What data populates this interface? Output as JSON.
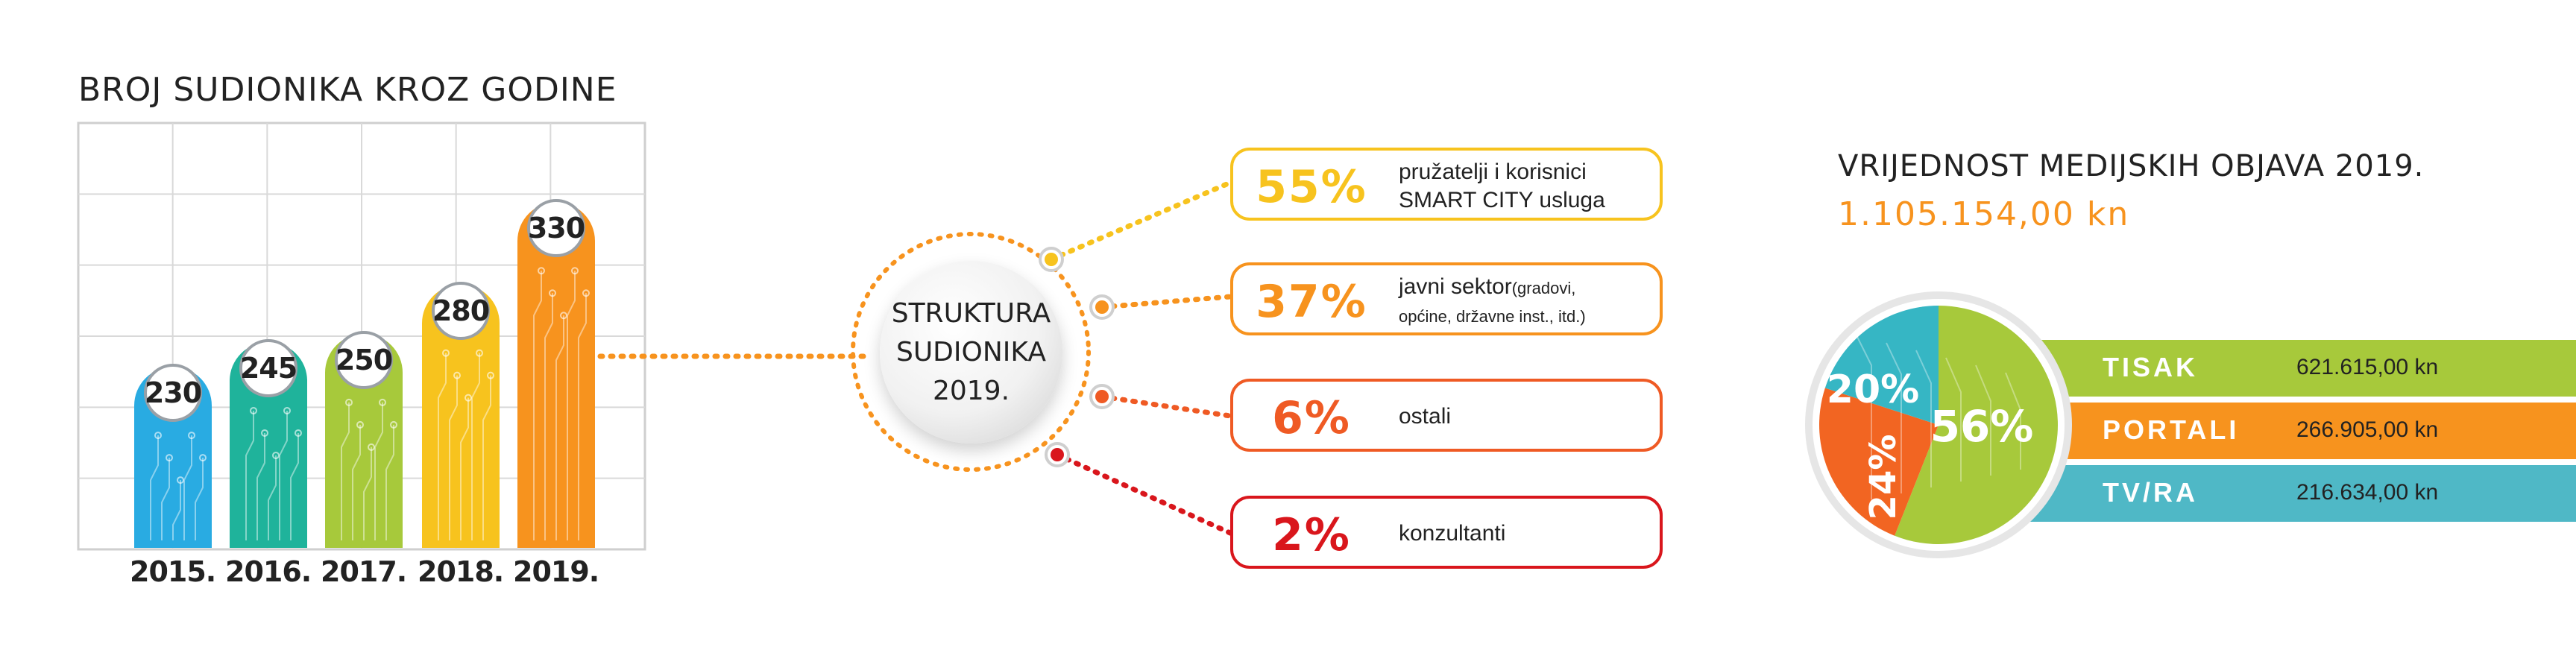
{
  "left_chart": {
    "title": "BROJ SUDIONIKA KROZ GODINE",
    "chart_data": {
      "type": "bar",
      "categories": [
        "2015.",
        "2016.",
        "2017.",
        "2018.",
        "2019."
      ],
      "values": [
        230,
        245,
        250,
        280,
        330
      ],
      "colors": [
        "#29abe2",
        "#1fb39b",
        "#a7c93b",
        "#f7c31e",
        "#f7931e"
      ],
      "title": "BROJ SUDIONIKA KROZ GODINE",
      "ylim": [
        0,
        360
      ],
      "grid": true
    }
  },
  "structure": {
    "center_lines": [
      "STRUKTURA",
      "SUDIONIKA",
      "2019."
    ],
    "items": [
      {
        "pct": "55%",
        "label_main": "pružatelji i korisnici",
        "label_line2": "SMART CITY usluga",
        "label_small": "",
        "label_small2": "",
        "color": "#f7c31e"
      },
      {
        "pct": "37%",
        "label_main": "javni sektor",
        "label_line2": "",
        "label_small": "(gradovi,",
        "label_small2": "općine, državne inst., itd.)",
        "color": "#f7931e"
      },
      {
        "pct": "6%",
        "label_main": "ostali",
        "label_line2": "",
        "label_small": "",
        "label_small2": "",
        "color": "#ef5a24"
      },
      {
        "pct": "2%",
        "label_main": "konzultanti",
        "label_line2": "",
        "label_small": "",
        "label_small2": "",
        "color": "#d9161c"
      }
    ]
  },
  "media": {
    "title": "VRIJEDNOST MEDIJSKIH OBJAVA 2019.",
    "total": "1.105.154,00 kn",
    "chart_data": {
      "type": "pie",
      "slice_labels": [
        "56%",
        "24%",
        "20%"
      ],
      "values": [
        56,
        24,
        20
      ],
      "colors": [
        "#a7c93b",
        "#f26522",
        "#36b6c4"
      ]
    },
    "rows": [
      {
        "name": "TISAK",
        "amount": "621.615,00 kn",
        "color": "#a7c93b"
      },
      {
        "name": "PORTALI",
        "amount": "266.905,00 kn",
        "color": "#f7931e"
      },
      {
        "name": "TV/RA",
        "amount": "216.634,00 kn",
        "color": "#4fb8c6"
      }
    ]
  }
}
